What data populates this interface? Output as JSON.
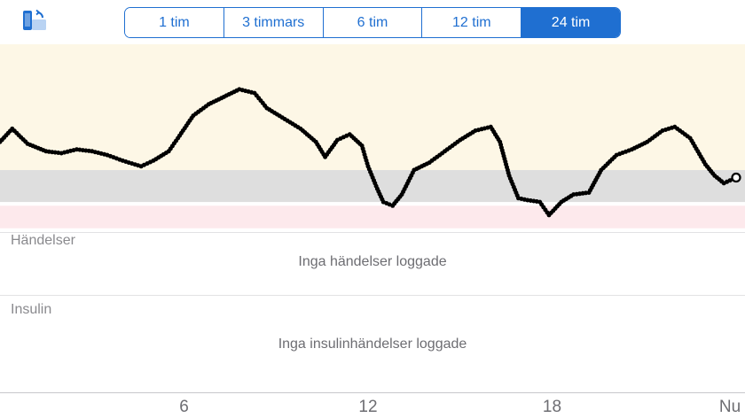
{
  "header": {
    "rotate_icon": "rotate-device-icon",
    "ranges": [
      {
        "label": "1 tim",
        "selected": false
      },
      {
        "label": "3 timmars",
        "selected": false
      },
      {
        "label": "6 tim",
        "selected": false
      },
      {
        "label": "12 tim",
        "selected": false
      },
      {
        "label": "24 tim",
        "selected": true
      }
    ]
  },
  "colors": {
    "accent": "#1f6fd1",
    "high_zone": "#fdf7e6",
    "target_zone": "#dedede",
    "low_zone": "#fde9ec",
    "trace": "#000000"
  },
  "chart_data": {
    "type": "scatter",
    "x_unit": "hours (0 = 24 h ago, 24 = Nu)",
    "xlim": [
      0,
      24
    ],
    "x_ticks": [
      {
        "value": 6,
        "label": "6"
      },
      {
        "value": 12,
        "label": "12"
      },
      {
        "value": 18,
        "label": "18"
      },
      {
        "value": 24,
        "label": "Nu"
      }
    ],
    "y_scale": "relative glucose level (0 = bottom of plot, 1 = top of plot)",
    "zones": {
      "high_above": 0.33,
      "target_range": [
        0.16,
        0.33
      ],
      "low_range": [
        0.02,
        0.14
      ]
    },
    "points": [
      [
        0.0,
        0.48
      ],
      [
        0.4,
        0.55
      ],
      [
        0.9,
        0.47
      ],
      [
        1.5,
        0.43
      ],
      [
        2.0,
        0.42
      ],
      [
        2.5,
        0.44
      ],
      [
        3.0,
        0.43
      ],
      [
        3.5,
        0.41
      ],
      [
        4.0,
        0.38
      ],
      [
        4.6,
        0.35
      ],
      [
        5.0,
        0.38
      ],
      [
        5.5,
        0.43
      ],
      [
        5.8,
        0.5
      ],
      [
        6.3,
        0.62
      ],
      [
        6.8,
        0.68
      ],
      [
        7.3,
        0.72
      ],
      [
        7.8,
        0.76
      ],
      [
        8.3,
        0.74
      ],
      [
        8.7,
        0.66
      ],
      [
        9.2,
        0.61
      ],
      [
        9.8,
        0.55
      ],
      [
        10.3,
        0.48
      ],
      [
        10.6,
        0.4
      ],
      [
        11.0,
        0.49
      ],
      [
        11.4,
        0.52
      ],
      [
        11.8,
        0.46
      ],
      [
        12.0,
        0.35
      ],
      [
        12.3,
        0.23
      ],
      [
        12.5,
        0.16
      ],
      [
        12.8,
        0.14
      ],
      [
        13.1,
        0.2
      ],
      [
        13.5,
        0.33
      ],
      [
        14.0,
        0.37
      ],
      [
        14.5,
        0.43
      ],
      [
        15.0,
        0.49
      ],
      [
        15.5,
        0.54
      ],
      [
        16.0,
        0.56
      ],
      [
        16.3,
        0.48
      ],
      [
        16.6,
        0.3
      ],
      [
        16.9,
        0.18
      ],
      [
        17.2,
        0.17
      ],
      [
        17.6,
        0.16
      ],
      [
        17.9,
        0.09
      ],
      [
        18.3,
        0.16
      ],
      [
        18.7,
        0.2
      ],
      [
        19.2,
        0.21
      ],
      [
        19.6,
        0.33
      ],
      [
        20.1,
        0.41
      ],
      [
        20.6,
        0.44
      ],
      [
        21.1,
        0.48
      ],
      [
        21.6,
        0.54
      ],
      [
        22.0,
        0.56
      ],
      [
        22.5,
        0.5
      ],
      [
        23.0,
        0.36
      ],
      [
        23.3,
        0.3
      ],
      [
        23.6,
        0.26
      ],
      [
        24.0,
        0.29
      ]
    ],
    "latest": [
      24.0,
      0.29
    ]
  },
  "events": {
    "title": "Händelser",
    "empty": "Inga händelser loggade"
  },
  "insulin": {
    "title": "Insulin",
    "empty": "Inga insulinhändelser loggade"
  }
}
